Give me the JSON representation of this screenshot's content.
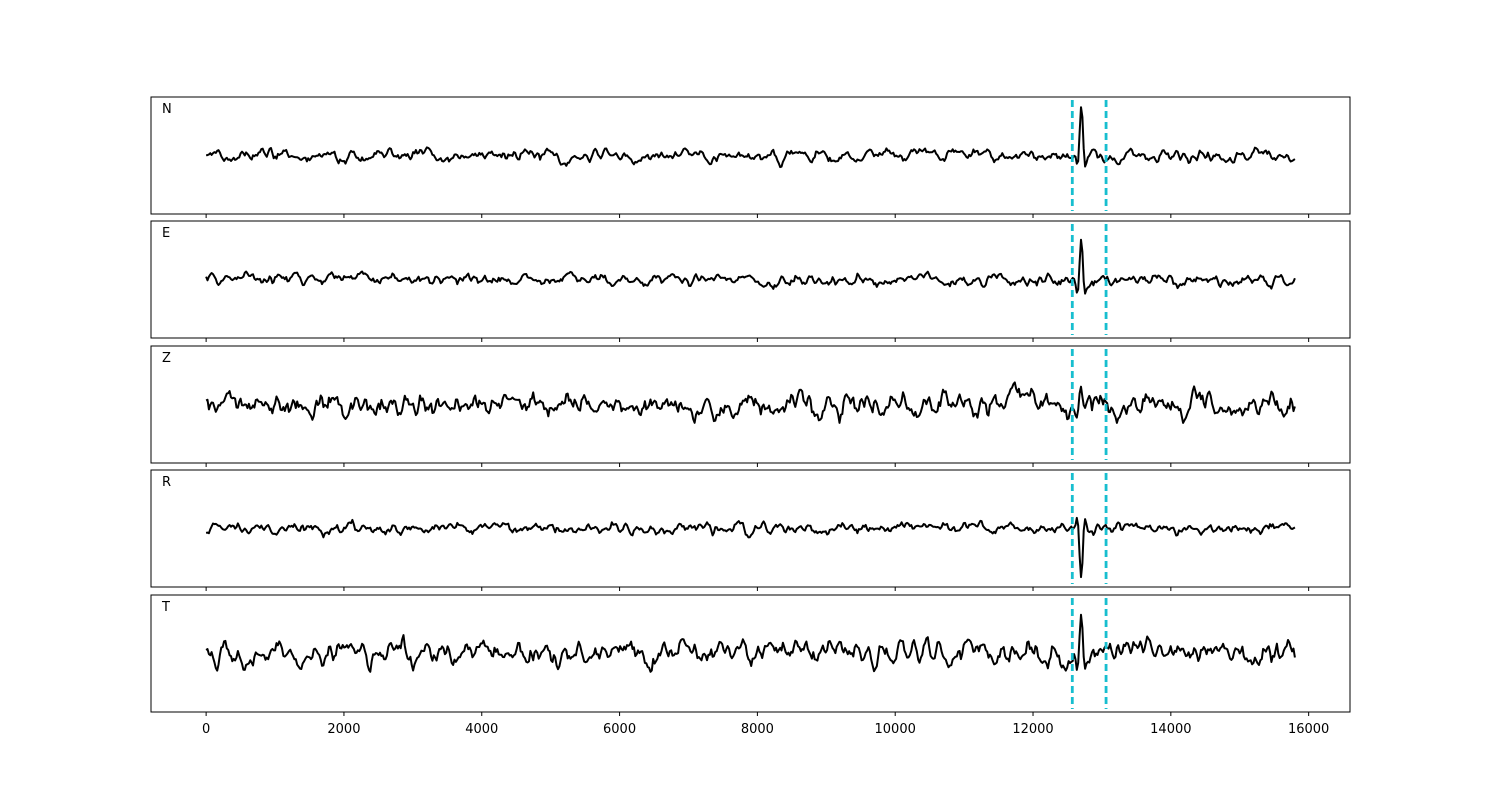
{
  "chart_data": {
    "type": "line",
    "x_range": [
      0,
      15800
    ],
    "xlim": [
      -800,
      16600
    ],
    "x_ticks": [
      0,
      2000,
      4000,
      6000,
      8000,
      10000,
      12000,
      14000,
      16000
    ],
    "x_tick_labels": [
      "0",
      "2000",
      "4000",
      "6000",
      "8000",
      "10000",
      "12000",
      "14000",
      "16000"
    ],
    "line_color": "#000000",
    "marker_color": "#17becf",
    "markers": [
      12570,
      13060
    ],
    "event_x": 12700,
    "shared_x_axis": true,
    "grid": false,
    "panels": [
      {
        "label": "N",
        "noise_amp": 0.22,
        "event_amp": 0.85,
        "event_sign": 1,
        "seed": 11
      },
      {
        "label": "E",
        "noise_amp": 0.18,
        "event_amp": 0.92,
        "event_sign": 1,
        "seed": 23
      },
      {
        "label": "Z",
        "noise_amp": 0.42,
        "event_amp": 0.3,
        "event_sign": 1,
        "seed": 37
      },
      {
        "label": "R",
        "noise_amp": 0.17,
        "event_amp": 0.88,
        "event_sign": -1,
        "seed": 41
      },
      {
        "label": "T",
        "noise_amp": 0.35,
        "event_amp": 0.8,
        "event_sign": 1,
        "seed": 53
      }
    ]
  }
}
